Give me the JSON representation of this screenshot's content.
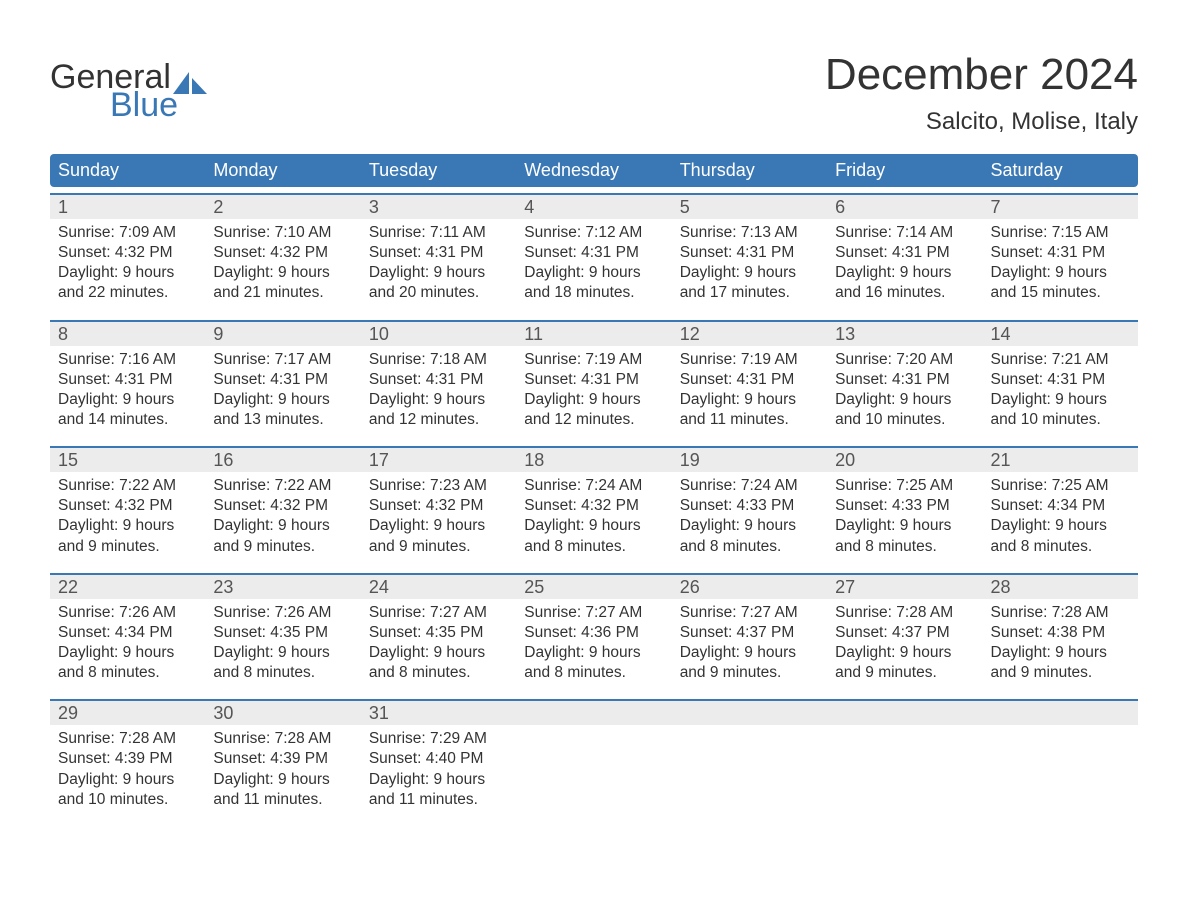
{
  "logo": {
    "text_general": "General",
    "text_blue": "Blue",
    "accent_color": "#3a78b5",
    "text_color": "#333333"
  },
  "title": {
    "month": "December 2024",
    "location": "Salcito, Molise, Italy"
  },
  "theme": {
    "header_bg": "#3a78b5",
    "header_text": "#ffffff",
    "week_rule_color": "#3a78b5",
    "daynum_bg": "#ececec",
    "daynum_text": "#555555",
    "body_text": "#333333",
    "page_bg": "#ffffff",
    "font_family": "Arial, Helvetica, sans-serif",
    "title_fontsize": 44,
    "location_fontsize": 24,
    "dow_fontsize": 18,
    "daynum_fontsize": 18,
    "body_fontsize": 15.5
  },
  "days_of_week": [
    "Sunday",
    "Monday",
    "Tuesday",
    "Wednesday",
    "Thursday",
    "Friday",
    "Saturday"
  ],
  "weeks": [
    [
      {
        "n": "1",
        "sunrise": "Sunrise: 7:09 AM",
        "sunset": "Sunset: 4:32 PM",
        "d1": "Daylight: 9 hours",
        "d2": "and 22 minutes."
      },
      {
        "n": "2",
        "sunrise": "Sunrise: 7:10 AM",
        "sunset": "Sunset: 4:32 PM",
        "d1": "Daylight: 9 hours",
        "d2": "and 21 minutes."
      },
      {
        "n": "3",
        "sunrise": "Sunrise: 7:11 AM",
        "sunset": "Sunset: 4:31 PM",
        "d1": "Daylight: 9 hours",
        "d2": "and 20 minutes."
      },
      {
        "n": "4",
        "sunrise": "Sunrise: 7:12 AM",
        "sunset": "Sunset: 4:31 PM",
        "d1": "Daylight: 9 hours",
        "d2": "and 18 minutes."
      },
      {
        "n": "5",
        "sunrise": "Sunrise: 7:13 AM",
        "sunset": "Sunset: 4:31 PM",
        "d1": "Daylight: 9 hours",
        "d2": "and 17 minutes."
      },
      {
        "n": "6",
        "sunrise": "Sunrise: 7:14 AM",
        "sunset": "Sunset: 4:31 PM",
        "d1": "Daylight: 9 hours",
        "d2": "and 16 minutes."
      },
      {
        "n": "7",
        "sunrise": "Sunrise: 7:15 AM",
        "sunset": "Sunset: 4:31 PM",
        "d1": "Daylight: 9 hours",
        "d2": "and 15 minutes."
      }
    ],
    [
      {
        "n": "8",
        "sunrise": "Sunrise: 7:16 AM",
        "sunset": "Sunset: 4:31 PM",
        "d1": "Daylight: 9 hours",
        "d2": "and 14 minutes."
      },
      {
        "n": "9",
        "sunrise": "Sunrise: 7:17 AM",
        "sunset": "Sunset: 4:31 PM",
        "d1": "Daylight: 9 hours",
        "d2": "and 13 minutes."
      },
      {
        "n": "10",
        "sunrise": "Sunrise: 7:18 AM",
        "sunset": "Sunset: 4:31 PM",
        "d1": "Daylight: 9 hours",
        "d2": "and 12 minutes."
      },
      {
        "n": "11",
        "sunrise": "Sunrise: 7:19 AM",
        "sunset": "Sunset: 4:31 PM",
        "d1": "Daylight: 9 hours",
        "d2": "and 12 minutes."
      },
      {
        "n": "12",
        "sunrise": "Sunrise: 7:19 AM",
        "sunset": "Sunset: 4:31 PM",
        "d1": "Daylight: 9 hours",
        "d2": "and 11 minutes."
      },
      {
        "n": "13",
        "sunrise": "Sunrise: 7:20 AM",
        "sunset": "Sunset: 4:31 PM",
        "d1": "Daylight: 9 hours",
        "d2": "and 10 minutes."
      },
      {
        "n": "14",
        "sunrise": "Sunrise: 7:21 AM",
        "sunset": "Sunset: 4:31 PM",
        "d1": "Daylight: 9 hours",
        "d2": "and 10 minutes."
      }
    ],
    [
      {
        "n": "15",
        "sunrise": "Sunrise: 7:22 AM",
        "sunset": "Sunset: 4:32 PM",
        "d1": "Daylight: 9 hours",
        "d2": "and 9 minutes."
      },
      {
        "n": "16",
        "sunrise": "Sunrise: 7:22 AM",
        "sunset": "Sunset: 4:32 PM",
        "d1": "Daylight: 9 hours",
        "d2": "and 9 minutes."
      },
      {
        "n": "17",
        "sunrise": "Sunrise: 7:23 AM",
        "sunset": "Sunset: 4:32 PM",
        "d1": "Daylight: 9 hours",
        "d2": "and 9 minutes."
      },
      {
        "n": "18",
        "sunrise": "Sunrise: 7:24 AM",
        "sunset": "Sunset: 4:32 PM",
        "d1": "Daylight: 9 hours",
        "d2": "and 8 minutes."
      },
      {
        "n": "19",
        "sunrise": "Sunrise: 7:24 AM",
        "sunset": "Sunset: 4:33 PM",
        "d1": "Daylight: 9 hours",
        "d2": "and 8 minutes."
      },
      {
        "n": "20",
        "sunrise": "Sunrise: 7:25 AM",
        "sunset": "Sunset: 4:33 PM",
        "d1": "Daylight: 9 hours",
        "d2": "and 8 minutes."
      },
      {
        "n": "21",
        "sunrise": "Sunrise: 7:25 AM",
        "sunset": "Sunset: 4:34 PM",
        "d1": "Daylight: 9 hours",
        "d2": "and 8 minutes."
      }
    ],
    [
      {
        "n": "22",
        "sunrise": "Sunrise: 7:26 AM",
        "sunset": "Sunset: 4:34 PM",
        "d1": "Daylight: 9 hours",
        "d2": "and 8 minutes."
      },
      {
        "n": "23",
        "sunrise": "Sunrise: 7:26 AM",
        "sunset": "Sunset: 4:35 PM",
        "d1": "Daylight: 9 hours",
        "d2": "and 8 minutes."
      },
      {
        "n": "24",
        "sunrise": "Sunrise: 7:27 AM",
        "sunset": "Sunset: 4:35 PM",
        "d1": "Daylight: 9 hours",
        "d2": "and 8 minutes."
      },
      {
        "n": "25",
        "sunrise": "Sunrise: 7:27 AM",
        "sunset": "Sunset: 4:36 PM",
        "d1": "Daylight: 9 hours",
        "d2": "and 8 minutes."
      },
      {
        "n": "26",
        "sunrise": "Sunrise: 7:27 AM",
        "sunset": "Sunset: 4:37 PM",
        "d1": "Daylight: 9 hours",
        "d2": "and 9 minutes."
      },
      {
        "n": "27",
        "sunrise": "Sunrise: 7:28 AM",
        "sunset": "Sunset: 4:37 PM",
        "d1": "Daylight: 9 hours",
        "d2": "and 9 minutes."
      },
      {
        "n": "28",
        "sunrise": "Sunrise: 7:28 AM",
        "sunset": "Sunset: 4:38 PM",
        "d1": "Daylight: 9 hours",
        "d2": "and 9 minutes."
      }
    ],
    [
      {
        "n": "29",
        "sunrise": "Sunrise: 7:28 AM",
        "sunset": "Sunset: 4:39 PM",
        "d1": "Daylight: 9 hours",
        "d2": "and 10 minutes."
      },
      {
        "n": "30",
        "sunrise": "Sunrise: 7:28 AM",
        "sunset": "Sunset: 4:39 PM",
        "d1": "Daylight: 9 hours",
        "d2": "and 11 minutes."
      },
      {
        "n": "31",
        "sunrise": "Sunrise: 7:29 AM",
        "sunset": "Sunset: 4:40 PM",
        "d1": "Daylight: 9 hours",
        "d2": "and 11 minutes."
      },
      {
        "empty": true
      },
      {
        "empty": true
      },
      {
        "empty": true
      },
      {
        "empty": true
      }
    ]
  ]
}
